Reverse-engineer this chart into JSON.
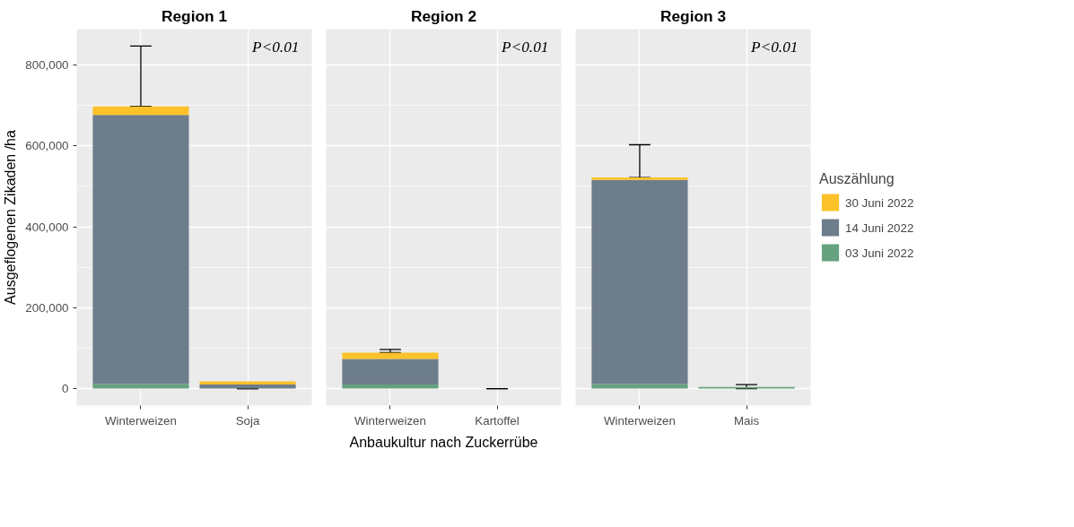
{
  "chart_data": [
    {
      "type": "bar",
      "title": "Region 1",
      "ylabel": "Ausgeflogenen Zikaden /ha",
      "stacked": true,
      "categories": [
        "Winterweizen",
        "Soja"
      ],
      "series": [
        {
          "color": "#67a27f",
          "values": [
            12000,
            0
          ]
        },
        {
          "color": "#6e7d8c",
          "values": [
            665000,
            10000
          ]
        },
        {
          "color": "#fdc12a",
          "values": [
            21000,
            8000
          ],
          "errors": [
            [
              698000,
              847000
            ],
            [
              0,
              0
            ]
          ]
        }
      ],
      "ylim": [
        -42000,
        889000
      ],
      "yticks": [
        {
          "value": 0,
          "label": "0"
        },
        {
          "value": 200000,
          "label": "200,000"
        },
        {
          "value": 400000,
          "label": "400,000"
        },
        {
          "value": 600000,
          "label": "600,000"
        },
        {
          "value": 800000,
          "label": "800,000"
        }
      ],
      "grid": true,
      "annotations": [
        "P<0.01"
      ]
    },
    {
      "type": "bar",
      "title": "Region 2",
      "xlabel": "Anbaukultur nach Zuckerrübe",
      "stacked": true,
      "categories": [
        "Winterweizen",
        "Kartoffel"
      ],
      "series": [
        {
          "color": "#67a27f",
          "values": [
            10000,
            0
          ]
        },
        {
          "color": "#6e7d8c",
          "values": [
            63000,
            0
          ]
        },
        {
          "color": "#fdc12a",
          "values": [
            16000,
            0
          ],
          "errors": [
            [
              89000,
              97000
            ],
            [
              0,
              0
            ]
          ]
        }
      ],
      "ylim": [
        -42000,
        889000
      ],
      "yticks": [
        0,
        200000,
        400000,
        600000,
        800000
      ],
      "grid": true,
      "tick_labels": "x",
      "annotations": [
        "P<0.01"
      ]
    },
    {
      "type": "bar",
      "title": "Region 3",
      "legend_title": "Auszählung",
      "legend": "right",
      "stacked": true,
      "categories": [
        "Winterweizen",
        "Mais"
      ],
      "series": [
        {
          "name": "03 Juni 2022",
          "color": "#67a27f",
          "values": [
            12000,
            4000
          ]
        },
        {
          "name": "14 Juni 2022",
          "color": "#6e7d8c",
          "values": [
            504000,
            0
          ]
        },
        {
          "name": "30 Juni 2022",
          "color": "#fdc12a",
          "values": [
            6000,
            0
          ],
          "errors": [
            [
              522000,
              603000
            ],
            [
              0,
              10000
            ]
          ]
        }
      ],
      "ylim": [
        -42000,
        889000
      ],
      "yticks": [
        0,
        200000,
        400000,
        600000,
        800000
      ],
      "grid": true,
      "tick_labels": "x",
      "annotations": [
        "P<0.01"
      ]
    }
  ]
}
